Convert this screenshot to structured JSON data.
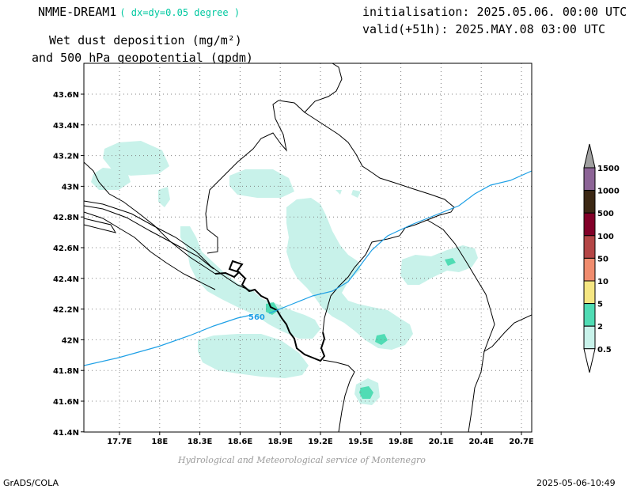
{
  "header": {
    "model": "NMME-DREAM1",
    "resolution": "( dx=dy=0.05 degree )",
    "init": "initialisation: 2025.05.06. 00:00 UTC",
    "valid": "valid(+51h): 2025.MAY.08 03:00 UTC",
    "var_line1": "Wet dust deposition (mg/m²)",
    "var_line2": "and 500 hPa geopotential (gpdm)"
  },
  "map": {
    "lon_ticks": [
      "17.7E",
      "18E",
      "18.3E",
      "18.6E",
      "18.9E",
      "19.2E",
      "19.5E",
      "19.8E",
      "20.1E",
      "20.4E",
      "20.7E"
    ],
    "lat_ticks": [
      "43.6N",
      "43.4N",
      "43.2N",
      "43N",
      "42.8N",
      "42.6N",
      "42.4N",
      "42.2N",
      "42N",
      "41.8N",
      "41.6N",
      "41.4N"
    ],
    "grid": true,
    "contour_label": "560",
    "contour_color": "#1ea0e6",
    "fill_colors": {
      "light": "#c8f2ea",
      "mid": "#50dcb4"
    }
  },
  "legend": {
    "levels": [
      "1500",
      "1000",
      "500",
      "100",
      "50",
      "10",
      "5",
      "2",
      "0.5"
    ],
    "colors": [
      "#a0a0a0",
      "#8c6496",
      "#3c2814",
      "#820028",
      "#b44646",
      "#f08c6e",
      "#f5e682",
      "#50dcb4",
      "#c8f2ea"
    ]
  },
  "footer": {
    "credit": "Hydrological and Meteorological service of Montenegro",
    "software": "GrADS/COLA",
    "timestamp": "2025-05-06-10:49"
  }
}
